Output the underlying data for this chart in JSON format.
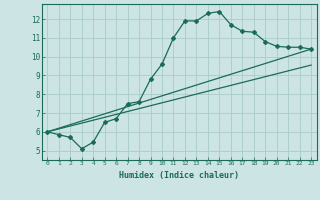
{
  "xlabel": "Humidex (Indice chaleur)",
  "ylabel": "",
  "bg_color": "#cce4e4",
  "grid_color": "#aacccc",
  "line_color": "#1a6b5a",
  "xlim": [
    -0.5,
    23.5
  ],
  "ylim": [
    4.5,
    12.8
  ],
  "xticks": [
    0,
    1,
    2,
    3,
    4,
    5,
    6,
    7,
    8,
    9,
    10,
    11,
    12,
    13,
    14,
    15,
    16,
    17,
    18,
    19,
    20,
    21,
    22,
    23
  ],
  "yticks": [
    5,
    6,
    7,
    8,
    9,
    10,
    11,
    12
  ],
  "curve1_x": [
    0,
    1,
    2,
    3,
    4,
    5,
    6,
    7,
    8,
    9,
    10,
    11,
    12,
    13,
    14,
    15,
    16,
    17,
    18,
    19,
    20,
    21,
    22,
    23
  ],
  "curve1_y": [
    6.0,
    5.85,
    5.7,
    5.1,
    5.45,
    6.5,
    6.7,
    7.5,
    7.6,
    8.8,
    9.6,
    11.0,
    11.9,
    11.9,
    12.3,
    12.4,
    11.7,
    11.35,
    11.3,
    10.8,
    10.55,
    10.5,
    10.5,
    10.4
  ],
  "curve2_x": [
    0,
    23
  ],
  "curve2_y": [
    6.0,
    10.4
  ],
  "curve3_x": [
    0,
    23
  ],
  "curve3_y": [
    6.0,
    9.55
  ]
}
